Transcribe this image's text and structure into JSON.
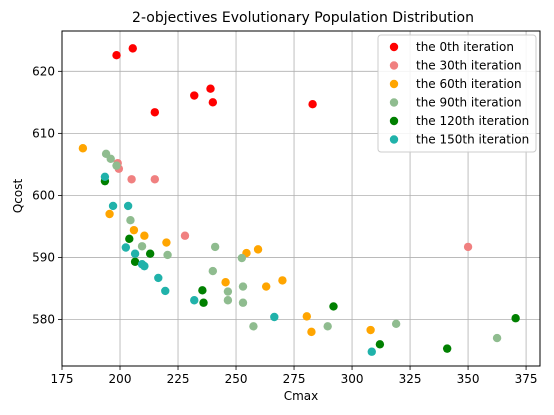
{
  "chart_data": {
    "type": "scatter",
    "title": "2-objectives Evolutionary Population Distribution",
    "xlabel": "Cmax",
    "ylabel": "Qcost",
    "xlim": [
      175,
      381
    ],
    "ylim": [
      572.5,
      626.5
    ],
    "xticks": [
      175,
      200,
      225,
      250,
      275,
      300,
      325,
      350,
      375
    ],
    "yticks": [
      580,
      590,
      600,
      610,
      620
    ],
    "grid": true,
    "legend_position": "top-right",
    "series": [
      {
        "name": "the 0th iteration",
        "color": "#ff0000",
        "points": [
          [
            198.5,
            622.6
          ],
          [
            205.5,
            623.7
          ],
          [
            215.0,
            613.4
          ],
          [
            232.0,
            616.1
          ],
          [
            239.0,
            617.2
          ],
          [
            240.0,
            615.0
          ],
          [
            283.0,
            614.7
          ]
        ]
      },
      {
        "name": "the 30th iteration",
        "color": "#f08080",
        "points": [
          [
            199.0,
            605.2
          ],
          [
            199.5,
            604.3
          ],
          [
            205.0,
            602.6
          ],
          [
            215.0,
            602.6
          ],
          [
            228.0,
            593.5
          ],
          [
            350.0,
            591.7
          ]
        ]
      },
      {
        "name": "the 60th iteration",
        "color": "#ffa500",
        "points": [
          [
            184.0,
            607.6
          ],
          [
            195.5,
            597.0
          ],
          [
            206.0,
            594.4
          ],
          [
            210.5,
            593.5
          ],
          [
            220.0,
            592.4
          ],
          [
            254.5,
            590.7
          ],
          [
            259.5,
            591.3
          ],
          [
            245.5,
            586.0
          ],
          [
            263.0,
            585.3
          ],
          [
            270.0,
            586.3
          ],
          [
            280.5,
            580.5
          ],
          [
            282.5,
            578.0
          ],
          [
            308.0,
            578.3
          ]
        ]
      },
      {
        "name": "the 90th iteration",
        "color": "#8fbc8f",
        "points": [
          [
            194.0,
            606.7
          ],
          [
            196.0,
            605.9
          ],
          [
            198.5,
            604.8
          ],
          [
            204.5,
            596.0
          ],
          [
            209.5,
            591.8
          ],
          [
            220.5,
            590.4
          ],
          [
            241.0,
            591.7
          ],
          [
            252.5,
            589.9
          ],
          [
            240.0,
            587.8
          ],
          [
            246.5,
            584.5
          ],
          [
            253.0,
            585.3
          ],
          [
            246.5,
            583.1
          ],
          [
            253.0,
            582.7
          ],
          [
            257.5,
            578.9
          ],
          [
            289.5,
            578.9
          ],
          [
            319.0,
            579.3
          ],
          [
            362.5,
            577.0
          ]
        ]
      },
      {
        "name": "the 120th iteration",
        "color": "#008000",
        "points": [
          [
            193.5,
            602.3
          ],
          [
            204.0,
            593.0
          ],
          [
            206.5,
            589.3
          ],
          [
            213.0,
            590.6
          ],
          [
            235.5,
            584.7
          ],
          [
            236.0,
            582.7
          ],
          [
            292.0,
            582.1
          ],
          [
            312.0,
            576.0
          ],
          [
            341.0,
            575.3
          ],
          [
            370.5,
            580.2
          ]
        ]
      },
      {
        "name": "the 150th iteration",
        "color": "#20b2aa",
        "points": [
          [
            193.5,
            603.0
          ],
          [
            197.0,
            598.3
          ],
          [
            203.5,
            598.3
          ],
          [
            202.5,
            591.6
          ],
          [
            206.5,
            590.6
          ],
          [
            209.5,
            588.9
          ],
          [
            210.5,
            588.6
          ],
          [
            216.5,
            586.7
          ],
          [
            219.5,
            584.6
          ],
          [
            232.0,
            583.1
          ],
          [
            266.5,
            580.4
          ],
          [
            308.5,
            574.8
          ]
        ]
      }
    ]
  }
}
